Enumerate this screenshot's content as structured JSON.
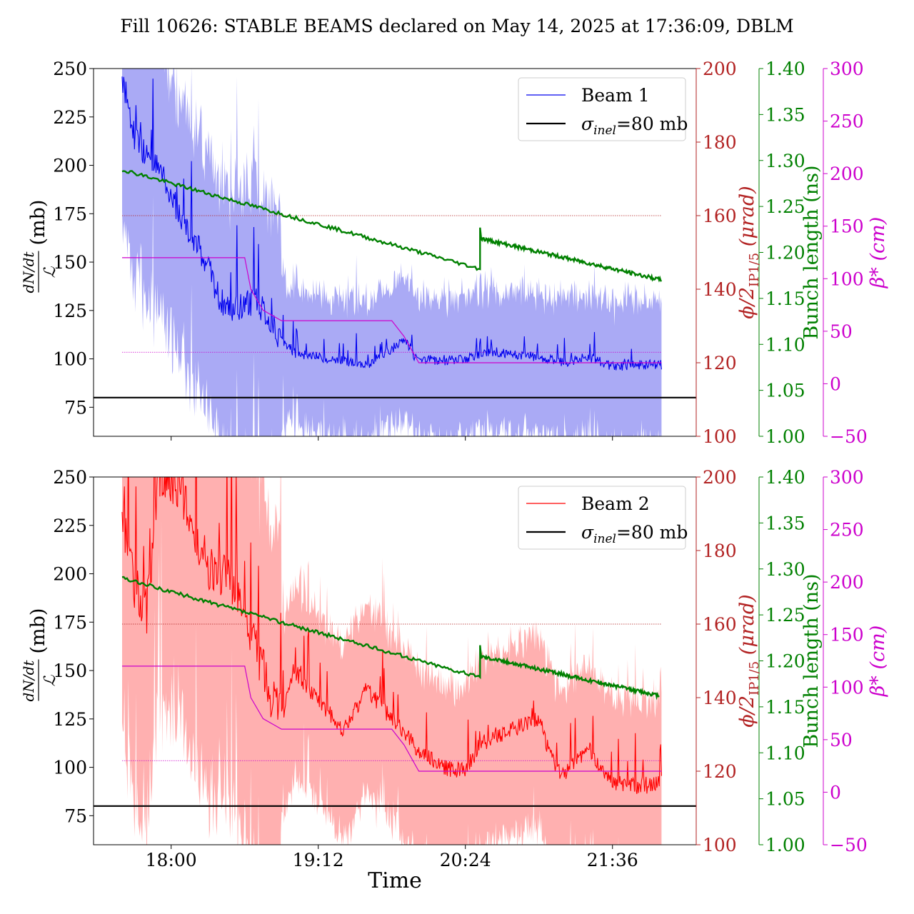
{
  "figure": {
    "title": "Fill 10626: STABLE BEAMS declared on May 14, 2025 at 17:36:09, DBLM",
    "xlabel": "Time",
    "xticks": [
      "18:00",
      "19:12",
      "20:24",
      "21:36"
    ],
    "xtick_times": [
      18.0,
      19.2,
      20.4,
      21.6
    ],
    "x_range": [
      17.367,
      22.283
    ],
    "ylabel_main": "dN/dt / ℒ (mb)",
    "ylabel_num": "dN/dt",
    "ylabel_den": "ℒ",
    "ylabel_unit": "(mb)",
    "crossing_axis_label": "ϕ/2",
    "crossing_axis_sub": "IP1/5",
    "crossing_axis_unit": "(μrad)",
    "bunch_axis_label": "Bunch length (ns)",
    "beta_axis_label": "β* (cm)",
    "beta_sym": "β",
    "beta_unit": "(cm)"
  },
  "colors": {
    "beam1": "#0000ee",
    "beam1_band": "#aaaaf5",
    "beam2": "#ff0000",
    "beam2_band": "#ffb0b0",
    "sigma_line": "#000000",
    "crossing": "#b22222",
    "bunch": "#008000",
    "beta": "#cc00cc"
  },
  "axes_ticks": {
    "left": [
      "75",
      "100",
      "125",
      "150",
      "175",
      "200",
      "225",
      "250"
    ],
    "crossing": [
      "100",
      "120",
      "140",
      "160",
      "180",
      "200"
    ],
    "bunch": [
      "1.00",
      "1.05",
      "1.10",
      "1.15",
      "1.20",
      "1.25",
      "1.30",
      "1.35",
      "1.40"
    ],
    "beta": [
      "−50",
      "0",
      "50",
      "100",
      "150",
      "200",
      "250",
      "300"
    ]
  },
  "legend": {
    "top_series": "Beam 1",
    "bottom_series": "Beam 2",
    "sigma_prefix": "σ",
    "sigma_sub": "inel",
    "sigma_suffix": "=80 mb",
    "placement": "top-right"
  },
  "chart_data": [
    {
      "type": "line",
      "panel": "top",
      "grid": false,
      "x_unit": "hours (time of day)",
      "ylim": [
        60,
        250
      ],
      "crossing_ylim": [
        100,
        200
      ],
      "bunch_ylim": [
        1.0,
        1.4
      ],
      "beta_ylim": [
        -50,
        300
      ],
      "series": [
        {
          "name": "Beam 1",
          "axis": "left",
          "x": [
            17.6,
            17.65,
            17.7,
            17.8,
            17.9,
            18.0,
            18.1,
            18.2,
            18.3,
            18.4,
            18.5,
            18.6,
            18.7,
            18.8,
            18.9,
            19.0,
            19.2,
            19.4,
            19.6,
            19.8,
            19.9,
            20.0,
            20.2,
            20.4,
            20.6,
            20.8,
            21.0,
            21.2,
            21.4,
            21.6,
            21.8,
            22.0
          ],
          "values": [
            245,
            232,
            215,
            205,
            198,
            185,
            170,
            160,
            148,
            130,
            126,
            128,
            130,
            120,
            110,
            103,
            101,
            99,
            97,
            105,
            110,
            100,
            99,
            100,
            104,
            102,
            101,
            98,
            101,
            96,
            97,
            97
          ]
        },
        {
          "name": "",
          "axis": "bunch",
          "x": [
            17.6,
            20.52,
            20.53,
            22.0
          ],
          "values": [
            1.29,
            1.182,
            1.215,
            1.17
          ]
        },
        {
          "name": "",
          "axis": "beta",
          "x": [
            17.6,
            18.6,
            18.65,
            18.75,
            18.9,
            19.0,
            19.8,
            19.9,
            20.02,
            20.1,
            22.0
          ],
          "values": [
            120,
            120,
            90,
            70,
            60,
            60,
            60,
            45,
            20,
            20,
            20
          ]
        },
        {
          "name": "",
          "axis": "crossing",
          "x": [
            17.6,
            22.0
          ],
          "values": [
            160,
            160
          ]
        },
        {
          "name": "",
          "axis": "beta",
          "x": [
            17.6,
            22.0
          ],
          "values": [
            30,
            30
          ]
        },
        {
          "name": "σinel=80 mb",
          "axis": "left",
          "x": [
            17.367,
            22.283
          ],
          "values": [
            80,
            80
          ]
        }
      ]
    },
    {
      "type": "line",
      "panel": "bottom",
      "grid": false,
      "x_unit": "hours (time of day)",
      "ylim": [
        60,
        250
      ],
      "crossing_ylim": [
        100,
        200
      ],
      "bunch_ylim": [
        1.0,
        1.4
      ],
      "beta_ylim": [
        -50,
        300
      ],
      "series": [
        {
          "name": "Beam 2",
          "axis": "left",
          "x": [
            17.6,
            17.7,
            17.8,
            17.9,
            18.0,
            18.1,
            18.2,
            18.3,
            18.4,
            18.5,
            18.6,
            18.7,
            18.8,
            18.9,
            19.0,
            19.2,
            19.4,
            19.6,
            19.8,
            20.0,
            20.2,
            20.4,
            20.5,
            20.6,
            20.8,
            21.0,
            21.1,
            21.2,
            21.4,
            21.6,
            21.8,
            22.0
          ],
          "values": [
            230,
            195,
            180,
            250,
            250,
            240,
            220,
            205,
            200,
            195,
            175,
            160,
            140,
            125,
            150,
            135,
            120,
            140,
            125,
            110,
            100,
            98,
            110,
            115,
            120,
            125,
            105,
            95,
            110,
            92,
            90,
            92
          ]
        },
        {
          "name": "",
          "axis": "bunch",
          "x": [
            17.6,
            20.52,
            20.53,
            21.98
          ],
          "values": [
            1.29,
            1.182,
            1.205,
            1.162
          ]
        },
        {
          "name": "",
          "axis": "beta",
          "x": [
            17.6,
            18.6,
            18.65,
            18.75,
            18.9,
            19.0,
            19.8,
            19.9,
            20.02,
            20.1,
            22.0
          ],
          "values": [
            120,
            120,
            90,
            70,
            60,
            60,
            60,
            45,
            20,
            20,
            20
          ]
        },
        {
          "name": "",
          "axis": "crossing",
          "x": [
            17.6,
            22.0
          ],
          "values": [
            160,
            160
          ]
        },
        {
          "name": "",
          "axis": "beta",
          "x": [
            17.6,
            22.0
          ],
          "values": [
            30,
            30
          ]
        },
        {
          "name": "σinel=80 mb",
          "axis": "left",
          "x": [
            17.367,
            22.283
          ],
          "values": [
            80,
            80
          ]
        }
      ]
    }
  ]
}
